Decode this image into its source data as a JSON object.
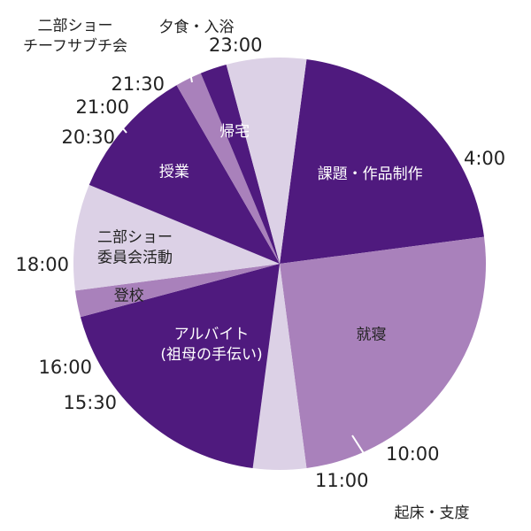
{
  "chart_data": {
    "type": "pie",
    "unit": "時刻 (24h)",
    "slices": [
      {
        "label": "課題・作品制作",
        "start": "23:00",
        "end": "4:00",
        "hours": 5,
        "color": "#4f1a7e",
        "text_color": "#ffffff"
      },
      {
        "label": "就寝",
        "start": "4:00",
        "end": "10:00",
        "hours": 6,
        "color": "#a981bb",
        "text_color": "#222222"
      },
      {
        "label": "起床・支度",
        "start": "10:00",
        "end": "11:00",
        "hours": 1,
        "color": "#dcd1e6",
        "text_color": "#222222"
      },
      {
        "label": "アルバイト\n(祖母の手伝い)",
        "start": "11:00",
        "end": "15:30",
        "hours": 4.5,
        "color": "#4f1a7e",
        "text_color": "#ffffff"
      },
      {
        "label": "登校",
        "start": "15:30",
        "end": "16:00",
        "hours": 0.5,
        "color": "#a981bb",
        "text_color": "#222222"
      },
      {
        "label": "二部ショー\n委員会活動",
        "start": "16:00",
        "end": "18:00",
        "hours": 2,
        "color": "#dcd1e6",
        "text_color": "#222222"
      },
      {
        "label": "授業",
        "start": "18:00",
        "end": "20:30",
        "hours": 2.5,
        "color": "#4f1a7e",
        "text_color": "#ffffff"
      },
      {
        "label": "二部ショー\nチーフサブチ会",
        "start": "20:30",
        "end": "21:00",
        "hours": 0.5,
        "color": "#a981bb",
        "text_color": "#222222"
      },
      {
        "label": "帰宅",
        "start": "21:00",
        "end": "21:30",
        "hours": 0.5,
        "color": "#4f1a7e",
        "text_color": "#ffffff"
      },
      {
        "label": "夕食・入浴",
        "start": "21:30",
        "end": "23:00",
        "hours": 1.5,
        "color": "#dcd1e6",
        "text_color": "#222222"
      }
    ],
    "tick_labels": [
      "23:00",
      "4:00",
      "10:00",
      "11:00",
      "15:30",
      "16:00",
      "18:00",
      "20:30",
      "21:00",
      "21:30"
    ]
  }
}
